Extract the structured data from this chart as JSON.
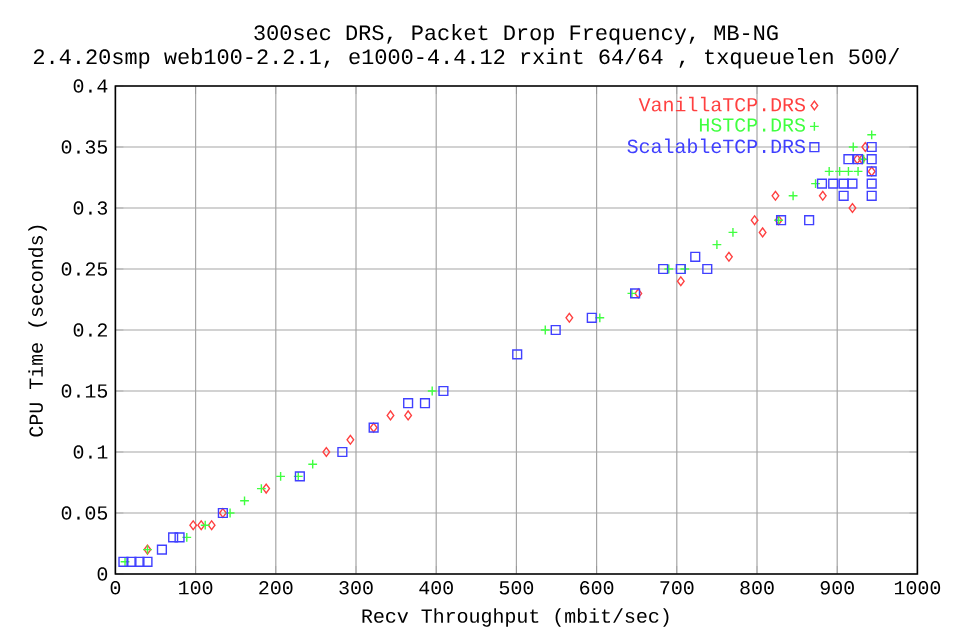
{
  "chart_data": {
    "type": "scatter",
    "title": "300sec DRS, Packet Drop Frequency, MB-NG",
    "subtitle": "2.4.20smp web100-2.2.1, e1000-4.4.12 rxint 64/64 , txqueuelen 500/",
    "xlabel": "Recv Throughput (mbit/sec)",
    "ylabel": "CPU Time (seconds)",
    "xlim": [
      0,
      1000
    ],
    "ylim": [
      0,
      0.4
    ],
    "xticks": [
      0,
      100,
      200,
      300,
      400,
      500,
      600,
      700,
      800,
      900,
      1000
    ],
    "yticks": [
      0,
      0.05,
      0.1,
      0.15,
      0.2,
      0.25,
      0.3,
      0.35,
      0.4
    ],
    "grid": true,
    "legend": "top right",
    "series": [
      {
        "name": "VanillaTCP.DRS",
        "color": "#ff4040",
        "marker": "diamond",
        "x": [
          40,
          97,
          107,
          120,
          134,
          188,
          263,
          293,
          322,
          343,
          365,
          566,
          652,
          705,
          765,
          797,
          807,
          823,
          827,
          882,
          919,
          925,
          931,
          935,
          943
        ],
        "values": [
          0.02,
          0.04,
          0.04,
          0.04,
          0.05,
          0.07,
          0.1,
          0.11,
          0.12,
          0.13,
          0.13,
          0.21,
          0.23,
          0.24,
          0.26,
          0.29,
          0.28,
          0.31,
          0.29,
          0.31,
          0.3,
          0.34,
          0.34,
          0.35,
          0.33
        ]
      },
      {
        "name": "HSTCP.DRS",
        "color": "#40ff40",
        "marker": "cross",
        "x": [
          12,
          40,
          89,
          112,
          143,
          161,
          182,
          206,
          228,
          246,
          395,
          536,
          604,
          644,
          690,
          710,
          750,
          770,
          827,
          845,
          873,
          890,
          903,
          914,
          926,
          933,
          920,
          943
        ],
        "values": [
          0.01,
          0.02,
          0.03,
          0.04,
          0.05,
          0.06,
          0.07,
          0.08,
          0.08,
          0.09,
          0.15,
          0.2,
          0.21,
          0.23,
          0.25,
          0.25,
          0.27,
          0.28,
          0.29,
          0.31,
          0.32,
          0.33,
          0.33,
          0.33,
          0.33,
          0.34,
          0.35,
          0.36
        ]
      },
      {
        "name": "ScalableTCP.DRS",
        "color": "#4040ff",
        "marker": "square",
        "x": [
          10,
          20,
          30,
          40,
          58,
          72,
          80,
          134,
          230,
          283,
          322,
          365,
          386,
          409,
          501,
          549,
          594,
          648,
          683,
          705,
          723,
          738,
          830,
          865,
          881,
          895,
          908,
          919,
          943,
          908,
          943,
          943,
          914,
          926,
          943,
          943
        ],
        "values": [
          0.01,
          0.01,
          0.01,
          0.01,
          0.02,
          0.03,
          0.03,
          0.05,
          0.08,
          0.1,
          0.12,
          0.14,
          0.14,
          0.15,
          0.18,
          0.2,
          0.21,
          0.23,
          0.25,
          0.25,
          0.26,
          0.25,
          0.29,
          0.29,
          0.32,
          0.32,
          0.32,
          0.32,
          0.32,
          0.31,
          0.31,
          0.33,
          0.34,
          0.34,
          0.34,
          0.35
        ]
      }
    ]
  }
}
